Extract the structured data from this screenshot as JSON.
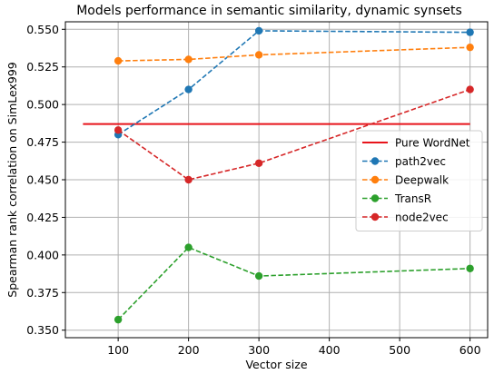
{
  "chart_data": {
    "type": "line",
    "title": "Models performance in semantic similarity, dynamic synsets",
    "xlabel": "Vector size",
    "ylabel": "Spearman rank correlation on SimLex999",
    "xlim": [
      25,
      625
    ],
    "ylim": [
      0.345,
      0.555
    ],
    "xticks": [
      100,
      200,
      300,
      400,
      500,
      600
    ],
    "yticks": [
      0.35,
      0.375,
      0.4,
      0.425,
      0.45,
      0.475,
      0.5,
      0.525,
      0.55
    ],
    "grid": true,
    "legend_position": "center-right",
    "baseline": {
      "name": "Pure WordNet",
      "value": 0.487,
      "x_range": [
        50,
        600
      ],
      "color": "#e8141b"
    },
    "series": [
      {
        "name": "path2vec",
        "color": "#1f77b4",
        "x": [
          100,
          200,
          300,
          600
        ],
        "y": [
          0.48,
          0.51,
          0.549,
          0.548
        ]
      },
      {
        "name": "Deepwalk",
        "color": "#ff7f0e",
        "x": [
          100,
          200,
          300,
          600
        ],
        "y": [
          0.529,
          0.53,
          0.533,
          0.538
        ]
      },
      {
        "name": "TransR",
        "color": "#2ca02c",
        "x": [
          100,
          200,
          300,
          600
        ],
        "y": [
          0.357,
          0.405,
          0.386,
          0.391
        ]
      },
      {
        "name": "node2vec",
        "color": "#d62728",
        "x": [
          100,
          200,
          300,
          600
        ],
        "y": [
          0.483,
          0.45,
          0.461,
          0.51
        ]
      }
    ]
  }
}
